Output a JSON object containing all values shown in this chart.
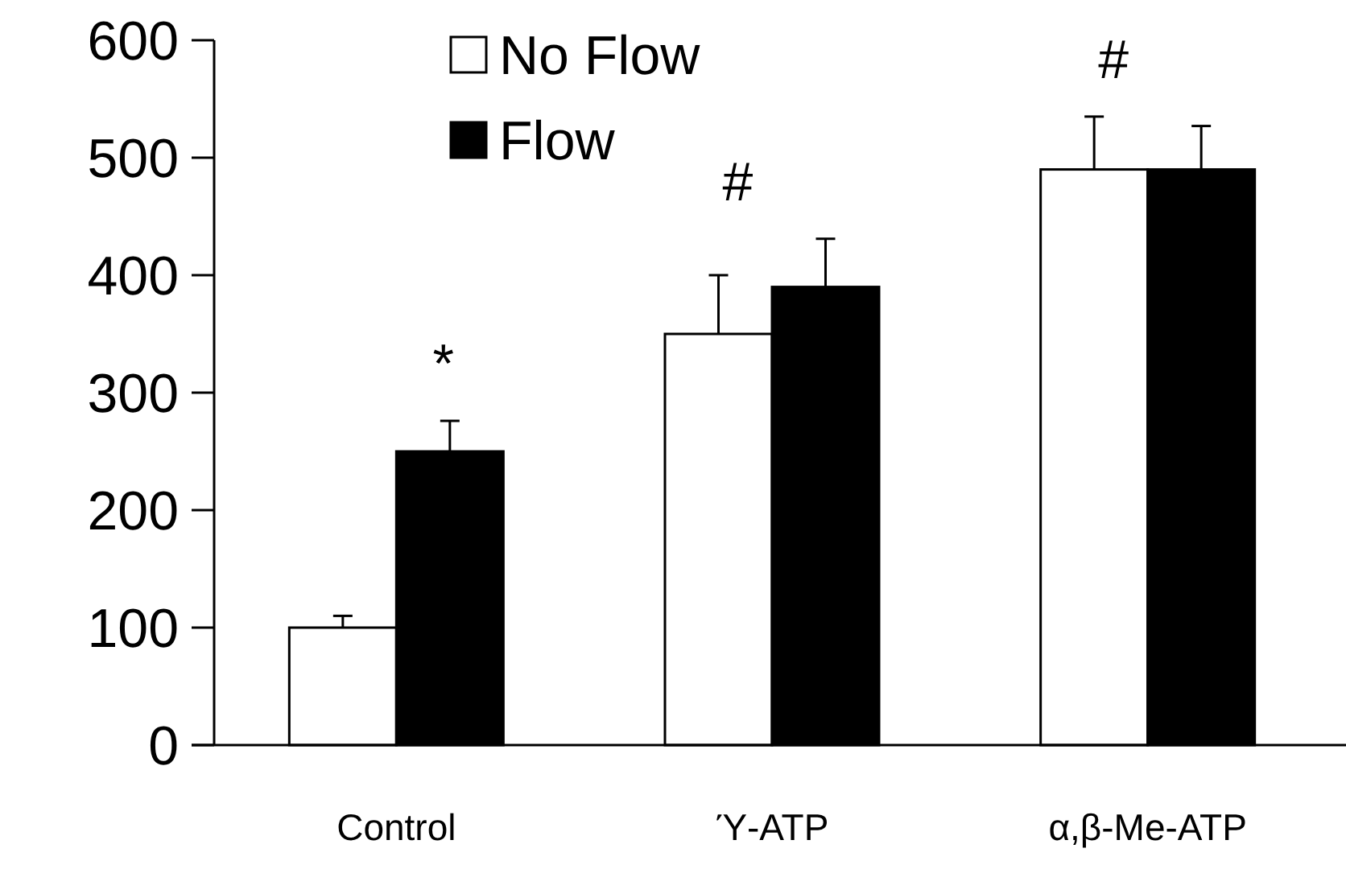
{
  "chart_data": {
    "type": "bar",
    "categories": [
      "Control",
      "Ύ-ATP",
      "α,β-Me-ATP"
    ],
    "series": [
      {
        "name": "No Flow",
        "color": "#ffffff",
        "values": [
          100,
          350,
          490
        ],
        "errors": [
          [
            100,
            110
          ],
          [
            350,
            400
          ],
          [
            490,
            535
          ]
        ]
      },
      {
        "name": "Flow",
        "color": "#000000",
        "values": [
          250,
          390,
          490
        ],
        "errors": [
          [
            250,
            276
          ],
          [
            390,
            431
          ],
          [
            490,
            527
          ]
        ]
      }
    ],
    "ylim": [
      0,
      600
    ],
    "yticks": [
      0,
      100,
      200,
      300,
      400,
      500,
      600
    ],
    "grid": false,
    "legend": "top",
    "annotations": [
      "*",
      "#",
      "#"
    ]
  }
}
